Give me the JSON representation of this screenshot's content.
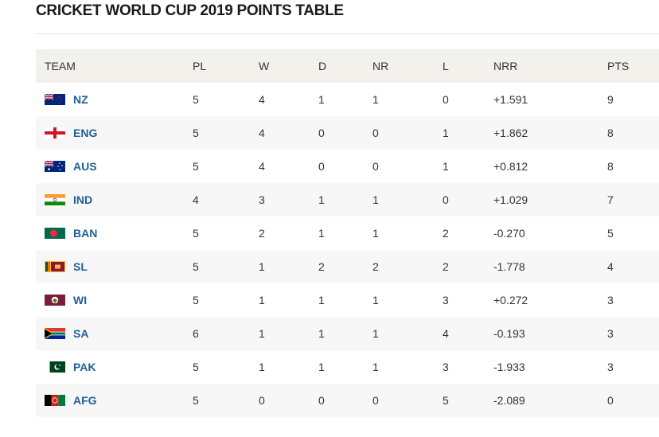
{
  "title": "CRICKET WORLD CUP 2019 POINTS TABLE",
  "columns": {
    "team": "TEAM",
    "pl": "PL",
    "w": "W",
    "d": "D",
    "nr": "NR",
    "l": "L",
    "nrr": "NRR",
    "pts": "PTS"
  },
  "rows": [
    {
      "team": "NZ",
      "flag": "new-zealand-flag-icon",
      "pl": "5",
      "w": "4",
      "d": "1",
      "nr": "1",
      "l": "0",
      "nrr": "+1.591",
      "pts": "9"
    },
    {
      "team": "ENG",
      "flag": "england-flag-icon",
      "pl": "5",
      "w": "4",
      "d": "0",
      "nr": "0",
      "l": "1",
      "nrr": "+1.862",
      "pts": "8"
    },
    {
      "team": "AUS",
      "flag": "australia-flag-icon",
      "pl": "5",
      "w": "4",
      "d": "0",
      "nr": "0",
      "l": "1",
      "nrr": "+0.812",
      "pts": "8"
    },
    {
      "team": "IND",
      "flag": "india-flag-icon",
      "pl": "4",
      "w": "3",
      "d": "1",
      "nr": "1",
      "l": "0",
      "nrr": "+1.029",
      "pts": "7"
    },
    {
      "team": "BAN",
      "flag": "bangladesh-flag-icon",
      "pl": "5",
      "w": "2",
      "d": "1",
      "nr": "1",
      "l": "2",
      "nrr": "-0.270",
      "pts": "5"
    },
    {
      "team": "SL",
      "flag": "sri-lanka-flag-icon",
      "pl": "5",
      "w": "1",
      "d": "2",
      "nr": "2",
      "l": "2",
      "nrr": "-1.778",
      "pts": "4"
    },
    {
      "team": "WI",
      "flag": "west-indies-flag-icon",
      "pl": "5",
      "w": "1",
      "d": "1",
      "nr": "1",
      "l": "3",
      "nrr": "+0.272",
      "pts": "3"
    },
    {
      "team": "SA",
      "flag": "south-africa-flag-icon",
      "pl": "6",
      "w": "1",
      "d": "1",
      "nr": "1",
      "l": "4",
      "nrr": "-0.193",
      "pts": "3"
    },
    {
      "team": "PAK",
      "flag": "pakistan-flag-icon",
      "pl": "5",
      "w": "1",
      "d": "1",
      "nr": "1",
      "l": "3",
      "nrr": "-1.933",
      "pts": "3"
    },
    {
      "team": "AFG",
      "flag": "afghanistan-flag-icon",
      "pl": "5",
      "w": "0",
      "d": "0",
      "nr": "0",
      "l": "5",
      "nrr": "-2.089",
      "pts": "0"
    }
  ],
  "colors": {
    "team_link": "#1f5f97",
    "header_bg": "#f3f1ec",
    "alt_row_bg": "#f7f7f7"
  }
}
